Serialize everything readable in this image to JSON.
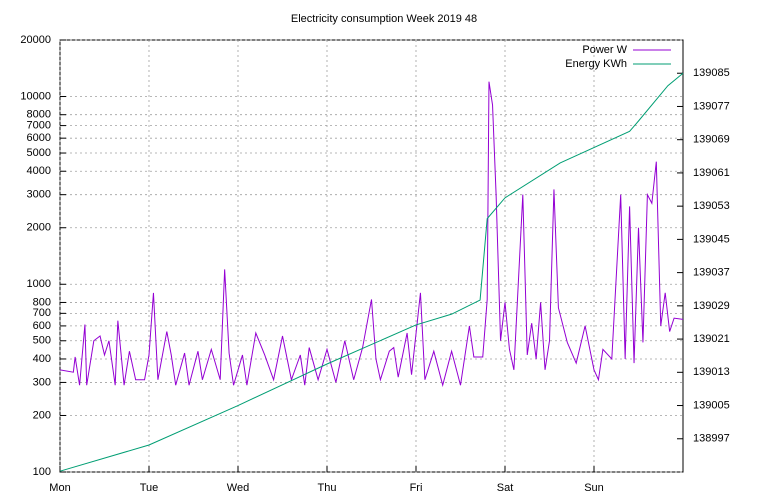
{
  "chart_data": {
    "type": "line",
    "title": "Electricity consumption Week 2019 48",
    "xlim": [
      0,
      7
    ],
    "xticks": [
      {
        "value": 0,
        "label": "Mon"
      },
      {
        "value": 1,
        "label": "Tue"
      },
      {
        "value": 2,
        "label": "Wed"
      },
      {
        "value": 3,
        "label": "Thu"
      },
      {
        "value": 4,
        "label": "Fri"
      },
      {
        "value": 5,
        "label": "Sat"
      },
      {
        "value": 6,
        "label": "Sun"
      }
    ],
    "ylim": [
      100,
      20000
    ],
    "log_scale": "y",
    "yticks": [
      100,
      200,
      300,
      400,
      500,
      600,
      700,
      800,
      1000,
      2000,
      3000,
      4000,
      5000,
      6000,
      7000,
      8000,
      10000,
      20000
    ],
    "y2lim": [
      138989,
      139093
    ],
    "y2ticks": [
      138997,
      139005,
      139013,
      139021,
      139029,
      139037,
      139045,
      139053,
      139061,
      139069,
      139077,
      139085
    ],
    "grid": true,
    "legend": "top-right",
    "series": [
      {
        "name": "Power W",
        "color": "#9400d3",
        "x": [
          0.0,
          0.15,
          0.17,
          0.22,
          0.28,
          0.3,
          0.38,
          0.45,
          0.5,
          0.55,
          0.62,
          0.65,
          0.72,
          0.78,
          0.85,
          0.95,
          1.0,
          1.05,
          1.1,
          1.2,
          1.25,
          1.3,
          1.4,
          1.45,
          1.55,
          1.6,
          1.7,
          1.8,
          1.85,
          1.9,
          1.95,
          2.05,
          2.1,
          2.2,
          2.3,
          2.4,
          2.5,
          2.6,
          2.7,
          2.75,
          2.8,
          2.9,
          3.0,
          3.1,
          3.2,
          3.3,
          3.4,
          3.5,
          3.55,
          3.6,
          3.7,
          3.75,
          3.8,
          3.9,
          3.95,
          4.05,
          4.1,
          4.2,
          4.3,
          4.4,
          4.5,
          4.6,
          4.65,
          4.75,
          4.8,
          4.82,
          4.86,
          4.9,
          4.95,
          5.0,
          5.05,
          5.1,
          5.2,
          5.25,
          5.3,
          5.35,
          5.4,
          5.45,
          5.5,
          5.55,
          5.6,
          5.7,
          5.8,
          5.9,
          6.0,
          6.05,
          6.1,
          6.2,
          6.3,
          6.35,
          6.4,
          6.45,
          6.5,
          6.55,
          6.6,
          6.65,
          6.7,
          6.75,
          6.8,
          6.85,
          6.9,
          7.0
        ],
        "values": [
          350,
          340,
          410,
          290,
          610,
          290,
          500,
          530,
          420,
          500,
          290,
          640,
          290,
          440,
          310,
          310,
          420,
          900,
          310,
          560,
          420,
          290,
          430,
          290,
          440,
          310,
          450,
          310,
          1200,
          430,
          290,
          420,
          290,
          550,
          420,
          310,
          530,
          310,
          420,
          290,
          460,
          310,
          450,
          300,
          500,
          310,
          460,
          830,
          400,
          310,
          440,
          460,
          320,
          550,
          330,
          900,
          310,
          440,
          290,
          440,
          290,
          600,
          410,
          410,
          830,
          12000,
          9000,
          3000,
          500,
          800,
          450,
          350,
          3000,
          420,
          620,
          400,
          800,
          350,
          500,
          3200,
          750,
          490,
          380,
          600,
          350,
          310,
          450,
          400,
          3000,
          400,
          2600,
          380,
          2000,
          490,
          3000,
          2700,
          4500,
          600,
          900,
          560,
          660,
          650
        ]
      },
      {
        "name": "Energy KWh",
        "color": "#009e73",
        "axis": "y2",
        "x": [
          0,
          1,
          2,
          3,
          4,
          4.4,
          4.72,
          4.8,
          5.0,
          5.62,
          6.4,
          6.5,
          6.83,
          7.0
        ],
        "values": [
          138989.2,
          138995.5,
          139005,
          139015,
          139024.4,
          139027,
          139030.4,
          139050,
          139055,
          139063.4,
          139071,
          139073.5,
          139082,
          139085
        ]
      }
    ]
  }
}
